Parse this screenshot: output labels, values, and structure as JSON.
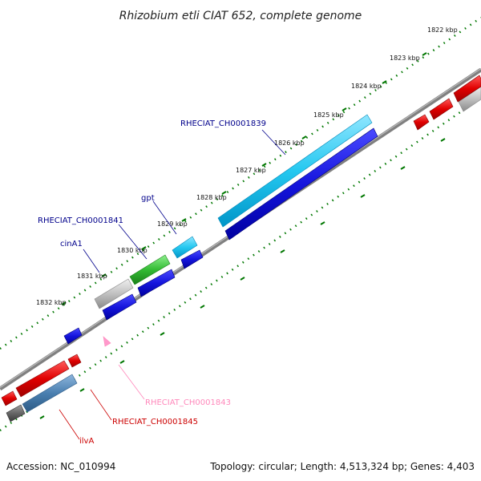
{
  "title": "Rhizobium etli CIAT 652, complete genome",
  "footer": {
    "accession": "Accession: NC_010994",
    "summary": "Topology: circular; Length: 4,513,324 bp; Genes: 4,403"
  },
  "ticks": [
    "1822 kbp",
    "1823 kbp",
    "1824 kbp",
    "1825 kbp",
    "1826 kbp",
    "1827 kbp",
    "1828 kbp",
    "1829 kbp",
    "1830 kbp",
    "1831 kbp",
    "1832 kbp"
  ],
  "genes": [
    {
      "name": "RHECIAT_CH0001839",
      "color": "#00008b"
    },
    {
      "name": "gpt",
      "color": "#00008b"
    },
    {
      "name": "RHECIAT_CH0001841",
      "color": "#00008b"
    },
    {
      "name": "cinA1",
      "color": "#00008b"
    },
    {
      "name": "RHECIAT_CH0001843",
      "color": "#ff88bb"
    },
    {
      "name": "RHECIAT_CH0001845",
      "color": "#cc0000"
    },
    {
      "name": "ilvA",
      "color": "#cc0000"
    }
  ],
  "colors": {
    "backbone": "#808080",
    "tick_marks": "#007700",
    "forward_cds": "#00b8ee",
    "reverse_cds": "#1010d8",
    "rna": "#33bb33",
    "pseudo": "#b0b0b0",
    "red_gene": "#dd0000",
    "steel_gene": "#4a7fb0"
  }
}
